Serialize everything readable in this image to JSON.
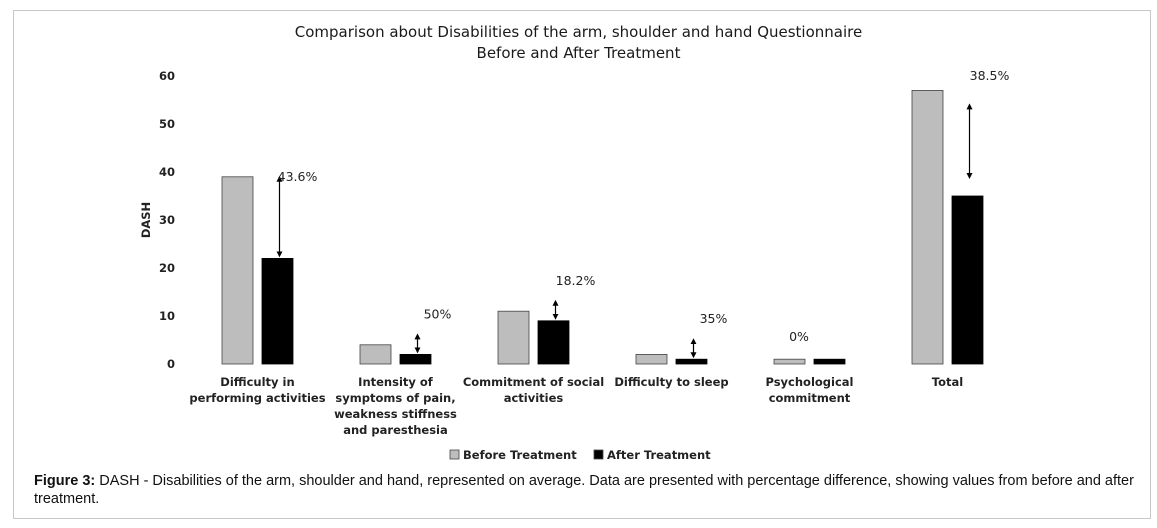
{
  "chart_data": {
    "type": "bar",
    "title": "Comparison about Disabilities of the arm, shoulder and hand Questionnaire",
    "subtitle": "Before and After Treatment",
    "xlabel": "",
    "ylabel": "DASH",
    "ylim": [
      0,
      60
    ],
    "yticks": [
      0,
      10,
      20,
      30,
      40,
      50,
      60
    ],
    "grid": false,
    "legend": "bottom",
    "categories": [
      [
        "Difficulty in",
        "performing activities"
      ],
      [
        "Intensity of",
        "symptoms of pain,",
        "weakness stiffness",
        "and paresthesia"
      ],
      [
        "Commitment of social",
        "activities"
      ],
      [
        "Difficulty to sleep"
      ],
      [
        "Psychological",
        "commitment"
      ],
      [
        "Total"
      ]
    ],
    "series": [
      {
        "name": "Before Treatment",
        "color": "#bdbdbd",
        "values": [
          39,
          4,
          11,
          2,
          1,
          57
        ]
      },
      {
        "name": "After Treatment",
        "color": "#000000",
        "values": [
          22,
          2,
          9,
          1,
          1,
          35
        ]
      }
    ],
    "annotations": [
      "43.6%",
      "50%",
      "18.2%",
      "35%",
      "0%",
      "38.5%"
    ]
  },
  "caption": {
    "label": "Figure 3:",
    "text": " DASH - Disabilities of the arm, shoulder and hand, represented on average. Data are presented with percentage difference, showing values from before and after treatment."
  }
}
